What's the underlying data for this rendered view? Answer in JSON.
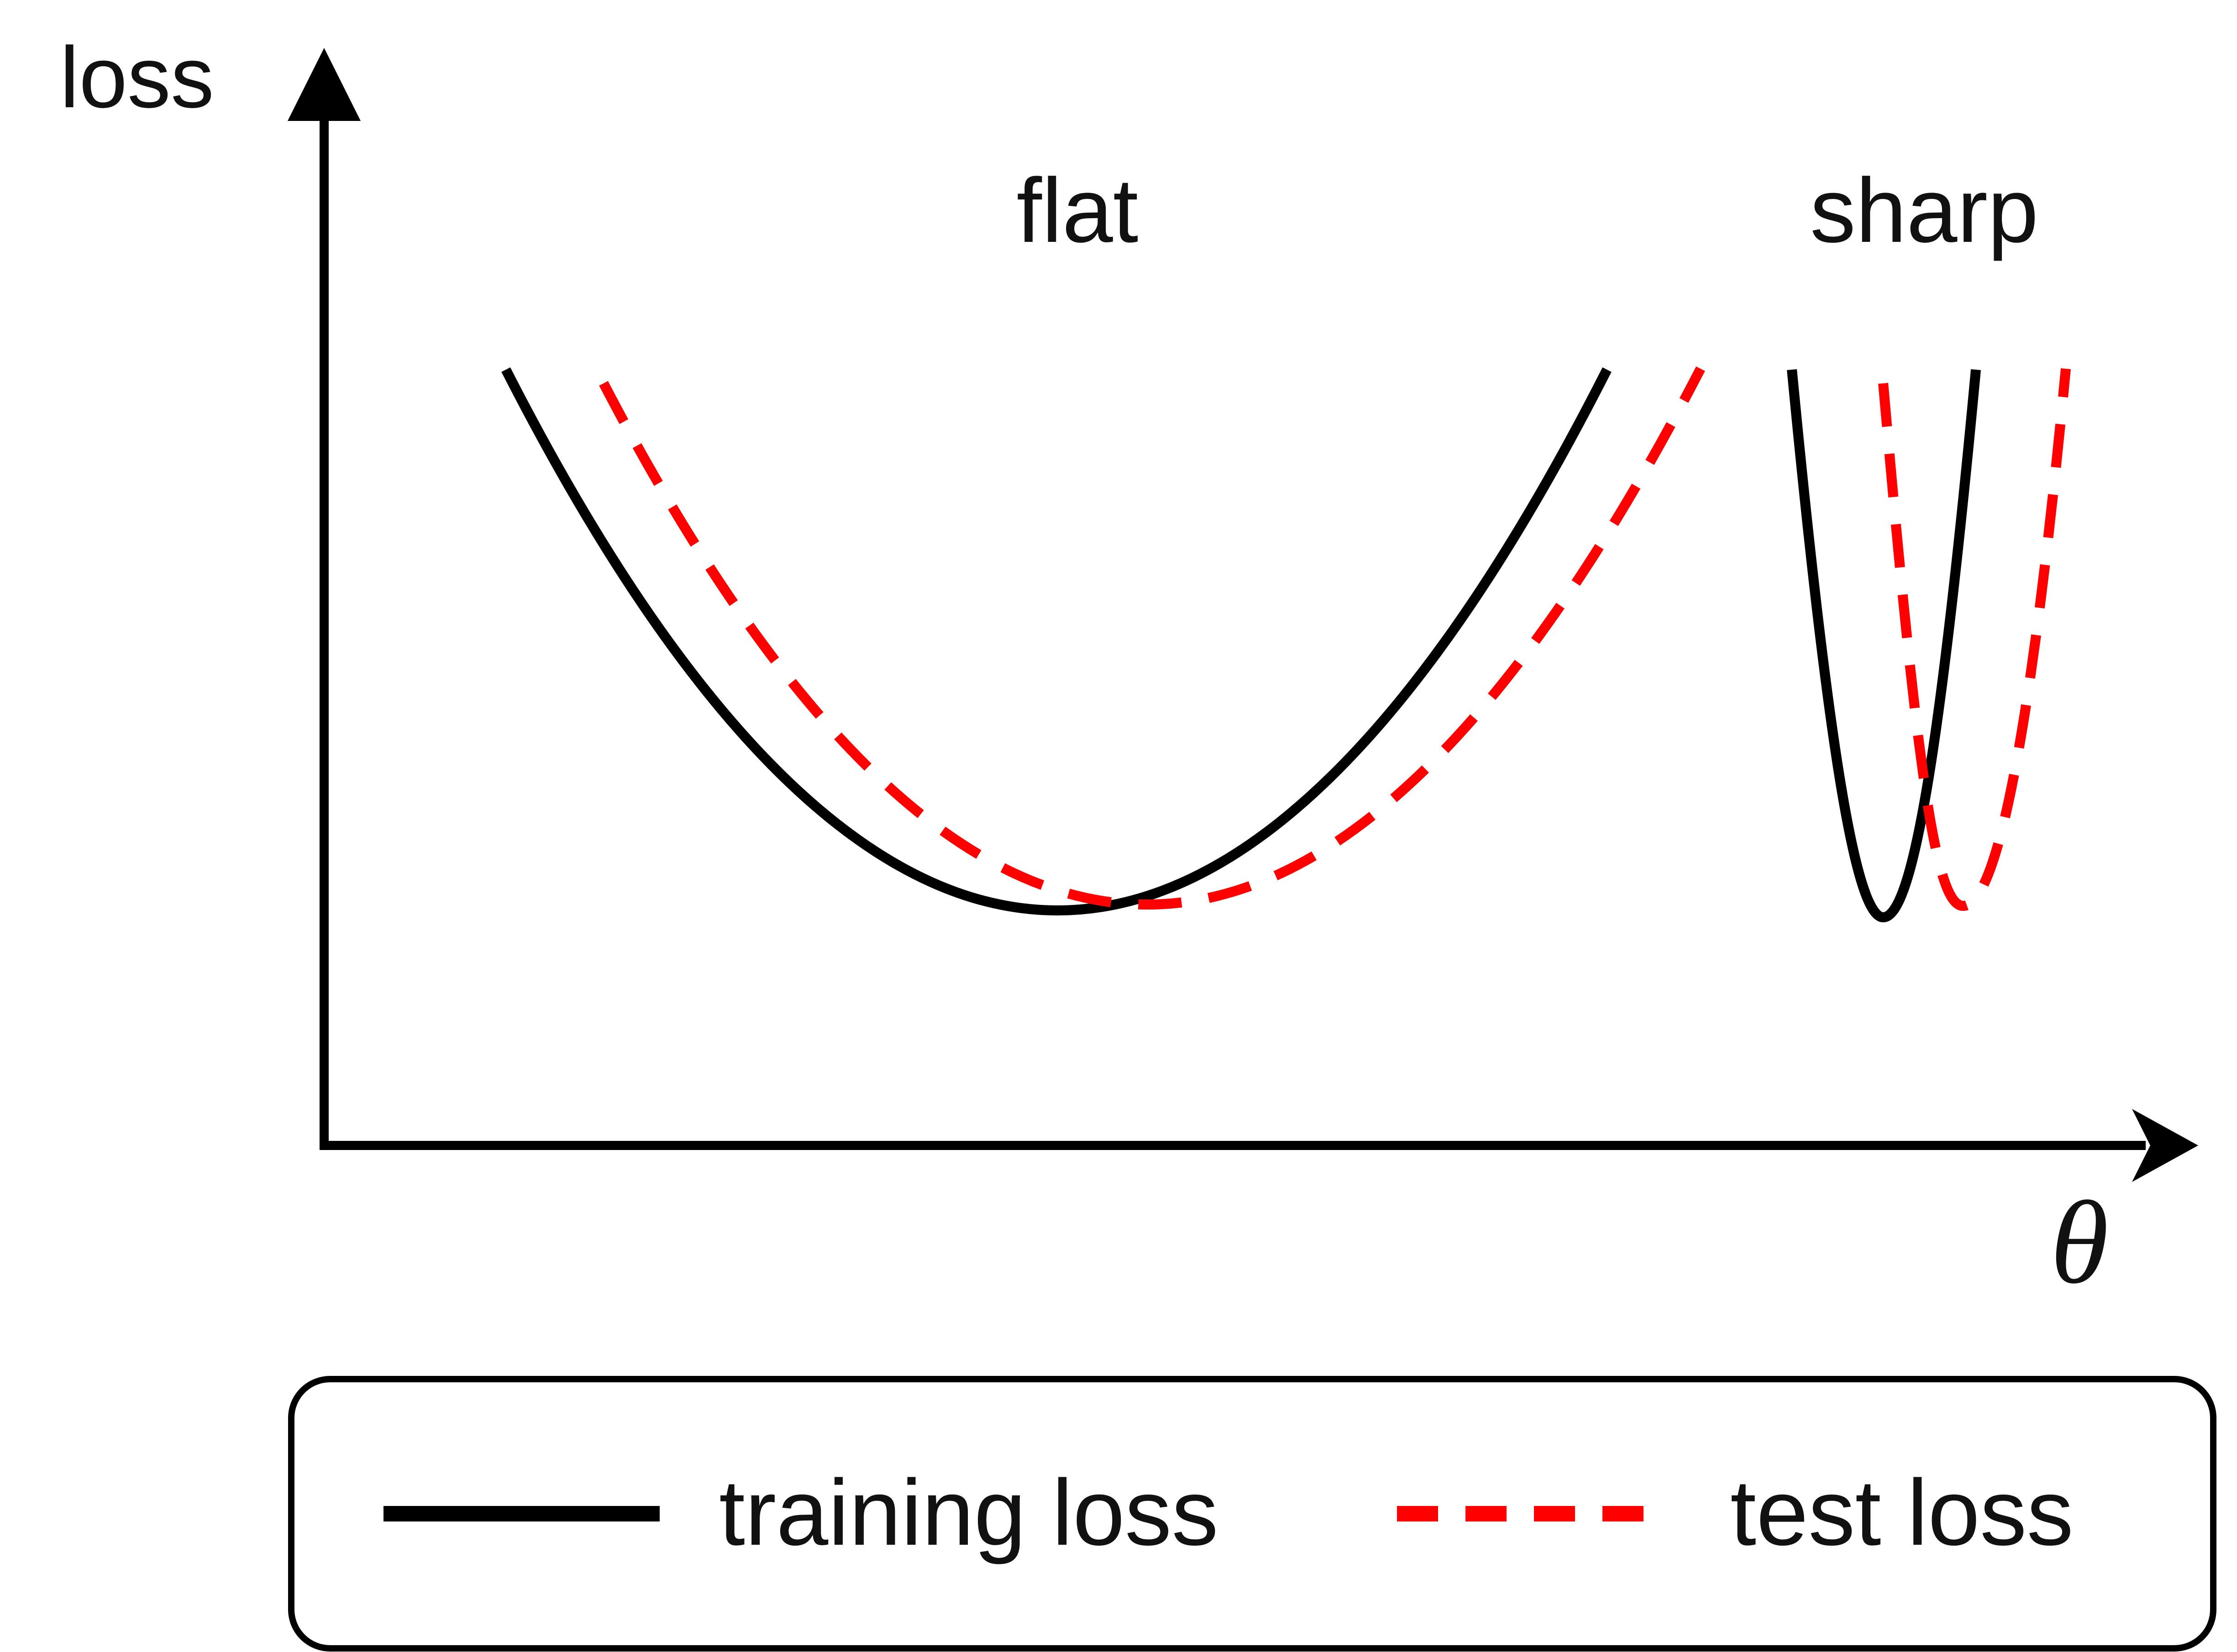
{
  "axes": {
    "y_label": "loss",
    "x_label": "θ"
  },
  "regions": {
    "flat_label": "flat",
    "sharp_label": "sharp"
  },
  "legend": {
    "training": "training loss",
    "test": "test loss"
  },
  "colors": {
    "training_loss": "#000000",
    "test_loss": "#ff0000"
  }
}
